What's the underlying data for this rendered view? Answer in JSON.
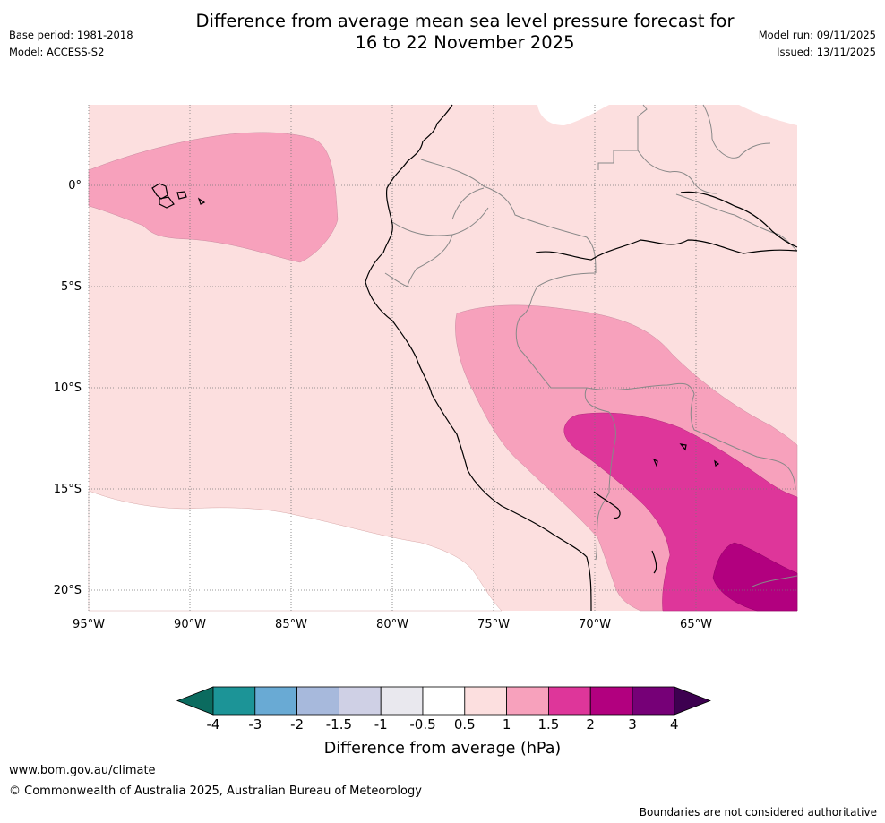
{
  "header": {
    "base_period": "Base period: 1981-2018",
    "model": "Model: ACCESS-S2",
    "title_line1": "Difference from average mean sea level pressure forecast for",
    "title_line2": "16 to 22 November 2025",
    "model_run": "Model run: 09/11/2025",
    "issued": "Issued: 13/11/2025"
  },
  "map": {
    "lat_labels": [
      "0°",
      "5°S",
      "10°S",
      "15°S",
      "20°S"
    ],
    "lon_labels": [
      "95°W",
      "90°W",
      "85°W",
      "80°W",
      "75°W",
      "70°W",
      "65°W"
    ],
    "fill_colors": {
      "band_0.5_1": "#fcdfdf",
      "band_1_1.5": "#f7a1bc",
      "band_1.5_2": "#de369a",
      "band_2_3": "#b2007f",
      "grid": "#777777",
      "coast": "#000000",
      "border": "#888888"
    }
  },
  "colorbar": {
    "colors": [
      "#0b6b5f",
      "#1c9497",
      "#69aad4",
      "#a7b9dc",
      "#cfd0e5",
      "#e9e8ee",
      "#ffffff",
      "#fcdfdf",
      "#f7a1bc",
      "#de369a",
      "#b2007f",
      "#760077",
      "#3d0050"
    ],
    "ticks": [
      "-4",
      "-3",
      "-2",
      "-1.5",
      "-1",
      "-0.5",
      "0.5",
      "1",
      "1.5",
      "2",
      "3",
      "4"
    ],
    "label": "Difference from average (hPa)"
  },
  "footer": {
    "website": "www.bom.gov.au/climate",
    "copyright": "© Commonwealth of Australia 2025, Australian Bureau of Meteorology",
    "disclaimer": "Boundaries are not considered authoritative"
  }
}
